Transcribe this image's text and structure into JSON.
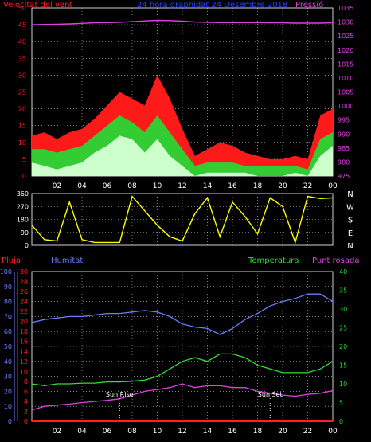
{
  "colors": {
    "wind_max": "#ff1a1a",
    "wind_avg": "#33cc33",
    "wind_min": "#ccffcc",
    "pressure": "#e040e0",
    "direction": "#ffff00",
    "rain": "#ff2020",
    "humidity": "#6a7cff",
    "temperature": "#33dd33",
    "dewpoint": "#e040e0",
    "title": "#2244ff",
    "grid": "#d0d0d0",
    "sun_marker": "#ffffff"
  },
  "x_hour_ticks": [
    "02",
    "04",
    "06",
    "08",
    "10",
    "12",
    "14",
    "16",
    "18",
    "20",
    "22",
    "00"
  ],
  "chart_data": [
    {
      "type": "line",
      "id": "wind_pressure",
      "title": "24 hora graphidat 24 Desembre 2018",
      "left_label": "Velocitat del vent",
      "right_label": "Pressió",
      "ylim_left": [
        0,
        50
      ],
      "ylim_right": [
        975,
        1035
      ],
      "y_ticks_left": [
        "0",
        "5",
        "10",
        "15",
        "20",
        "25",
        "30",
        "35",
        "40",
        "45",
        "50"
      ],
      "y_ticks_right": [
        "975",
        "980",
        "985",
        "990",
        "995",
        "1000",
        "1005",
        "1010",
        "1015",
        "1020",
        "1025",
        "1030",
        "1035"
      ],
      "x": [
        0,
        1,
        2,
        3,
        4,
        5,
        6,
        7,
        8,
        9,
        10,
        11,
        12,
        13,
        14,
        15,
        16,
        17,
        18,
        19,
        20,
        21,
        22,
        23,
        24
      ],
      "series": [
        {
          "key": "wind_max",
          "values": [
            12,
            13,
            11,
            13,
            14,
            17,
            21,
            25,
            23,
            21,
            30,
            23,
            14,
            6,
            8,
            10,
            9,
            7,
            6,
            5,
            5,
            6,
            5,
            18,
            20
          ]
        },
        {
          "key": "wind_avg",
          "values": [
            8,
            8,
            7,
            8,
            9,
            12,
            15,
            18,
            16,
            13,
            18,
            13,
            8,
            3,
            4,
            4,
            4,
            3,
            3,
            3,
            3,
            3,
            2,
            11,
            13
          ]
        },
        {
          "key": "wind_min",
          "values": [
            4,
            3,
            2,
            3,
            4,
            7,
            9,
            12,
            11,
            7,
            11,
            6,
            3,
            0,
            1,
            1,
            1,
            1,
            0,
            0,
            0,
            1,
            0,
            6,
            9
          ]
        },
        {
          "key": "pressure",
          "axis": "right",
          "values": [
            1029,
            1029.1,
            1029.2,
            1029.3,
            1029.5,
            1029.7,
            1029.8,
            1029.9,
            1030.1,
            1030.4,
            1030.6,
            1030.5,
            1030.3,
            1030,
            1029.9,
            1029.8,
            1029.8,
            1029.8,
            1029.8,
            1029.7,
            1029.7,
            1029.6,
            1029.6,
            1029.6,
            1029.7
          ]
        }
      ]
    },
    {
      "type": "line",
      "id": "wind_direction",
      "ylim": [
        0,
        360
      ],
      "y_ticks": [
        "0",
        "90",
        "180",
        "270",
        "360"
      ],
      "right_labels": [
        "N",
        "W",
        "S",
        "E",
        "N"
      ],
      "x": [
        0,
        1,
        2,
        3,
        4,
        5,
        6,
        7,
        8,
        9,
        10,
        11,
        12,
        13,
        14,
        15,
        16,
        17,
        18,
        19,
        20,
        21,
        22,
        23,
        24
      ],
      "values": [
        140,
        40,
        30,
        300,
        40,
        20,
        20,
        20,
        340,
        240,
        140,
        60,
        30,
        220,
        330,
        60,
        300,
        200,
        80,
        330,
        270,
        20,
        340,
        325,
        330
      ]
    },
    {
      "type": "line",
      "id": "temp_humidity",
      "labels": {
        "rain": "Pluja",
        "humidity": "Humitat",
        "temperature": "Temperatura",
        "dewpoint": "Punt rosada"
      },
      "ylim_humidity": [
        0,
        100
      ],
      "ylim_rain": [
        0,
        30
      ],
      "ylim_temperature": [
        0,
        40
      ],
      "y_ticks_humidity": [
        "0",
        "10",
        "20",
        "30",
        "40",
        "50",
        "60",
        "70",
        "80",
        "90",
        "100"
      ],
      "y_ticks_rain": [
        "0",
        "2",
        "4",
        "6",
        "8",
        "10",
        "12",
        "14",
        "16",
        "18",
        "20",
        "22",
        "24",
        "26",
        "28",
        "30"
      ],
      "y_ticks_temperature": [
        "0",
        "5",
        "10",
        "15",
        "20",
        "25",
        "30",
        "35",
        "40"
      ],
      "sun_rise": {
        "label": "Sun Rise",
        "hour": 7
      },
      "sun_set": {
        "label": "Sun Set",
        "hour": 19
      },
      "x": [
        0,
        1,
        2,
        3,
        4,
        5,
        6,
        7,
        8,
        9,
        10,
        11,
        12,
        13,
        14,
        15,
        16,
        17,
        18,
        19,
        20,
        21,
        22,
        23,
        24
      ],
      "series": [
        {
          "key": "humidity",
          "values": [
            66,
            68,
            69,
            70,
            70,
            71,
            72,
            72,
            73,
            74,
            73,
            70,
            65,
            63,
            62,
            58,
            62,
            68,
            72,
            77,
            80,
            82,
            85,
            85,
            80
          ]
        },
        {
          "key": "temperature",
          "values": [
            10,
            9.5,
            10,
            10,
            10.2,
            10.2,
            10.5,
            10.5,
            10.7,
            11,
            12,
            14,
            16,
            17,
            16,
            18,
            18,
            17,
            15,
            14,
            13,
            13,
            13,
            14,
            16
          ]
        },
        {
          "key": "dewpoint",
          "values": [
            3,
            4,
            4.3,
            4.6,
            5,
            5.3,
            5.6,
            6,
            7,
            8,
            8.5,
            9,
            10,
            9,
            9.5,
            9.5,
            9,
            9,
            8,
            7.5,
            7,
            6.7,
            7.2,
            7.5,
            8.2
          ]
        },
        {
          "key": "rain",
          "values": [
            0,
            0,
            0,
            0,
            0,
            0,
            0,
            0,
            0,
            0,
            0,
            0,
            0,
            0,
            0,
            0,
            0,
            0,
            0,
            0,
            0,
            0,
            0,
            0,
            0
          ]
        }
      ]
    }
  ]
}
